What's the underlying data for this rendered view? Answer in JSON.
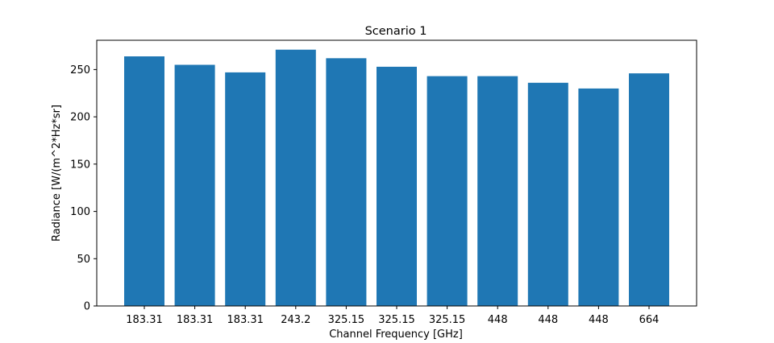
{
  "chart_data": {
    "type": "bar",
    "title": "Scenario 1",
    "xlabel": "Channel Frequency [GHz]",
    "ylabel": "Radiance [W/(m^2*Hz*sr]",
    "categories": [
      "183.31",
      "183.31",
      "183.31",
      "243.2",
      "325.15",
      "325.15",
      "325.15",
      "448",
      "448",
      "448",
      "664"
    ],
    "values": [
      264,
      255,
      247,
      271,
      262,
      253,
      243,
      243,
      236,
      230,
      246
    ],
    "ylim": [
      0,
      281
    ],
    "yticks": [
      0,
      50,
      100,
      150,
      200,
      250
    ],
    "grid": false,
    "colors": {
      "bar": "#1f77b4",
      "axis": "#000000"
    }
  }
}
